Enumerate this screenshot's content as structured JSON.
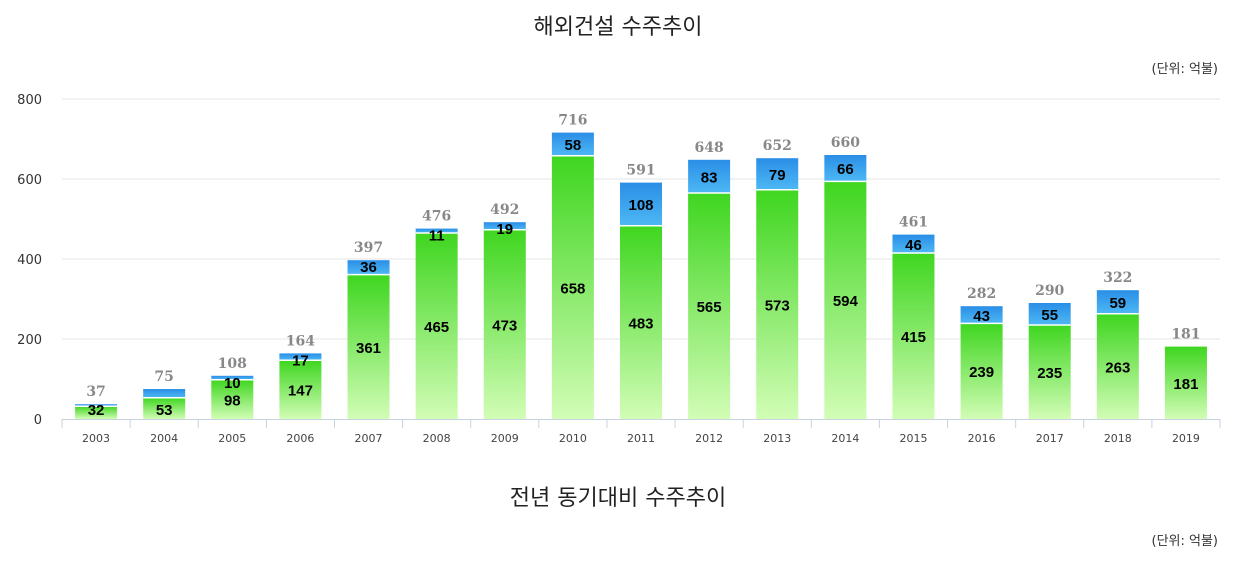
{
  "chart1": {
    "title": "해외건설 수주추이",
    "unit": "(단위: 억불)"
  },
  "chart2": {
    "title": "전년 동기대비 수주추이",
    "unit": "(단위: 억불)"
  },
  "colors": {
    "green_top": "#3fd620",
    "green_bottom": "#d2fdb6",
    "blue_top": "#2a8ee6",
    "blue_bottom": "#4db8f4",
    "grid": "#e4e4e4",
    "axis": "#c8d3e0",
    "total_label": "#888888"
  },
  "chart_data": {
    "type": "bar",
    "stacked": true,
    "title": "해외건설 수주추이",
    "unit": "(단위: 억불)",
    "categories": [
      "2003",
      "2004",
      "2005",
      "2006",
      "2007",
      "2008",
      "2009",
      "2010",
      "2011",
      "2012",
      "2013",
      "2014",
      "2015",
      "2016",
      "2017",
      "2018",
      "2019"
    ],
    "series": [
      {
        "values": [
          32,
          53,
          98,
          147,
          361,
          465,
          473,
          658,
          483,
          565,
          573,
          594,
          415,
          239,
          235,
          263,
          181
        ]
      },
      {
        "values": [
          5,
          22,
          10,
          17,
          36,
          11,
          19,
          58,
          108,
          83,
          79,
          66,
          46,
          43,
          55,
          59,
          0
        ]
      }
    ],
    "segment_labels": [
      [
        "32",
        "53",
        "98",
        "147",
        "361",
        "465",
        "473",
        "658",
        "483",
        "565",
        "573",
        "594",
        "415",
        "239",
        "235",
        "263",
        "181"
      ],
      [
        "",
        "",
        "10",
        "17",
        "36",
        "11",
        "19",
        "58",
        "108",
        "83",
        "79",
        "66",
        "46",
        "43",
        "55",
        "59",
        ""
      ]
    ],
    "totals": [
      37,
      75,
      108,
      164,
      397,
      476,
      492,
      716,
      591,
      648,
      652,
      660,
      461,
      282,
      290,
      322,
      181
    ],
    "ylim": [
      0,
      800
    ],
    "yticks": [
      0,
      200,
      400,
      600,
      800
    ],
    "grid": true,
    "legend": "none"
  }
}
